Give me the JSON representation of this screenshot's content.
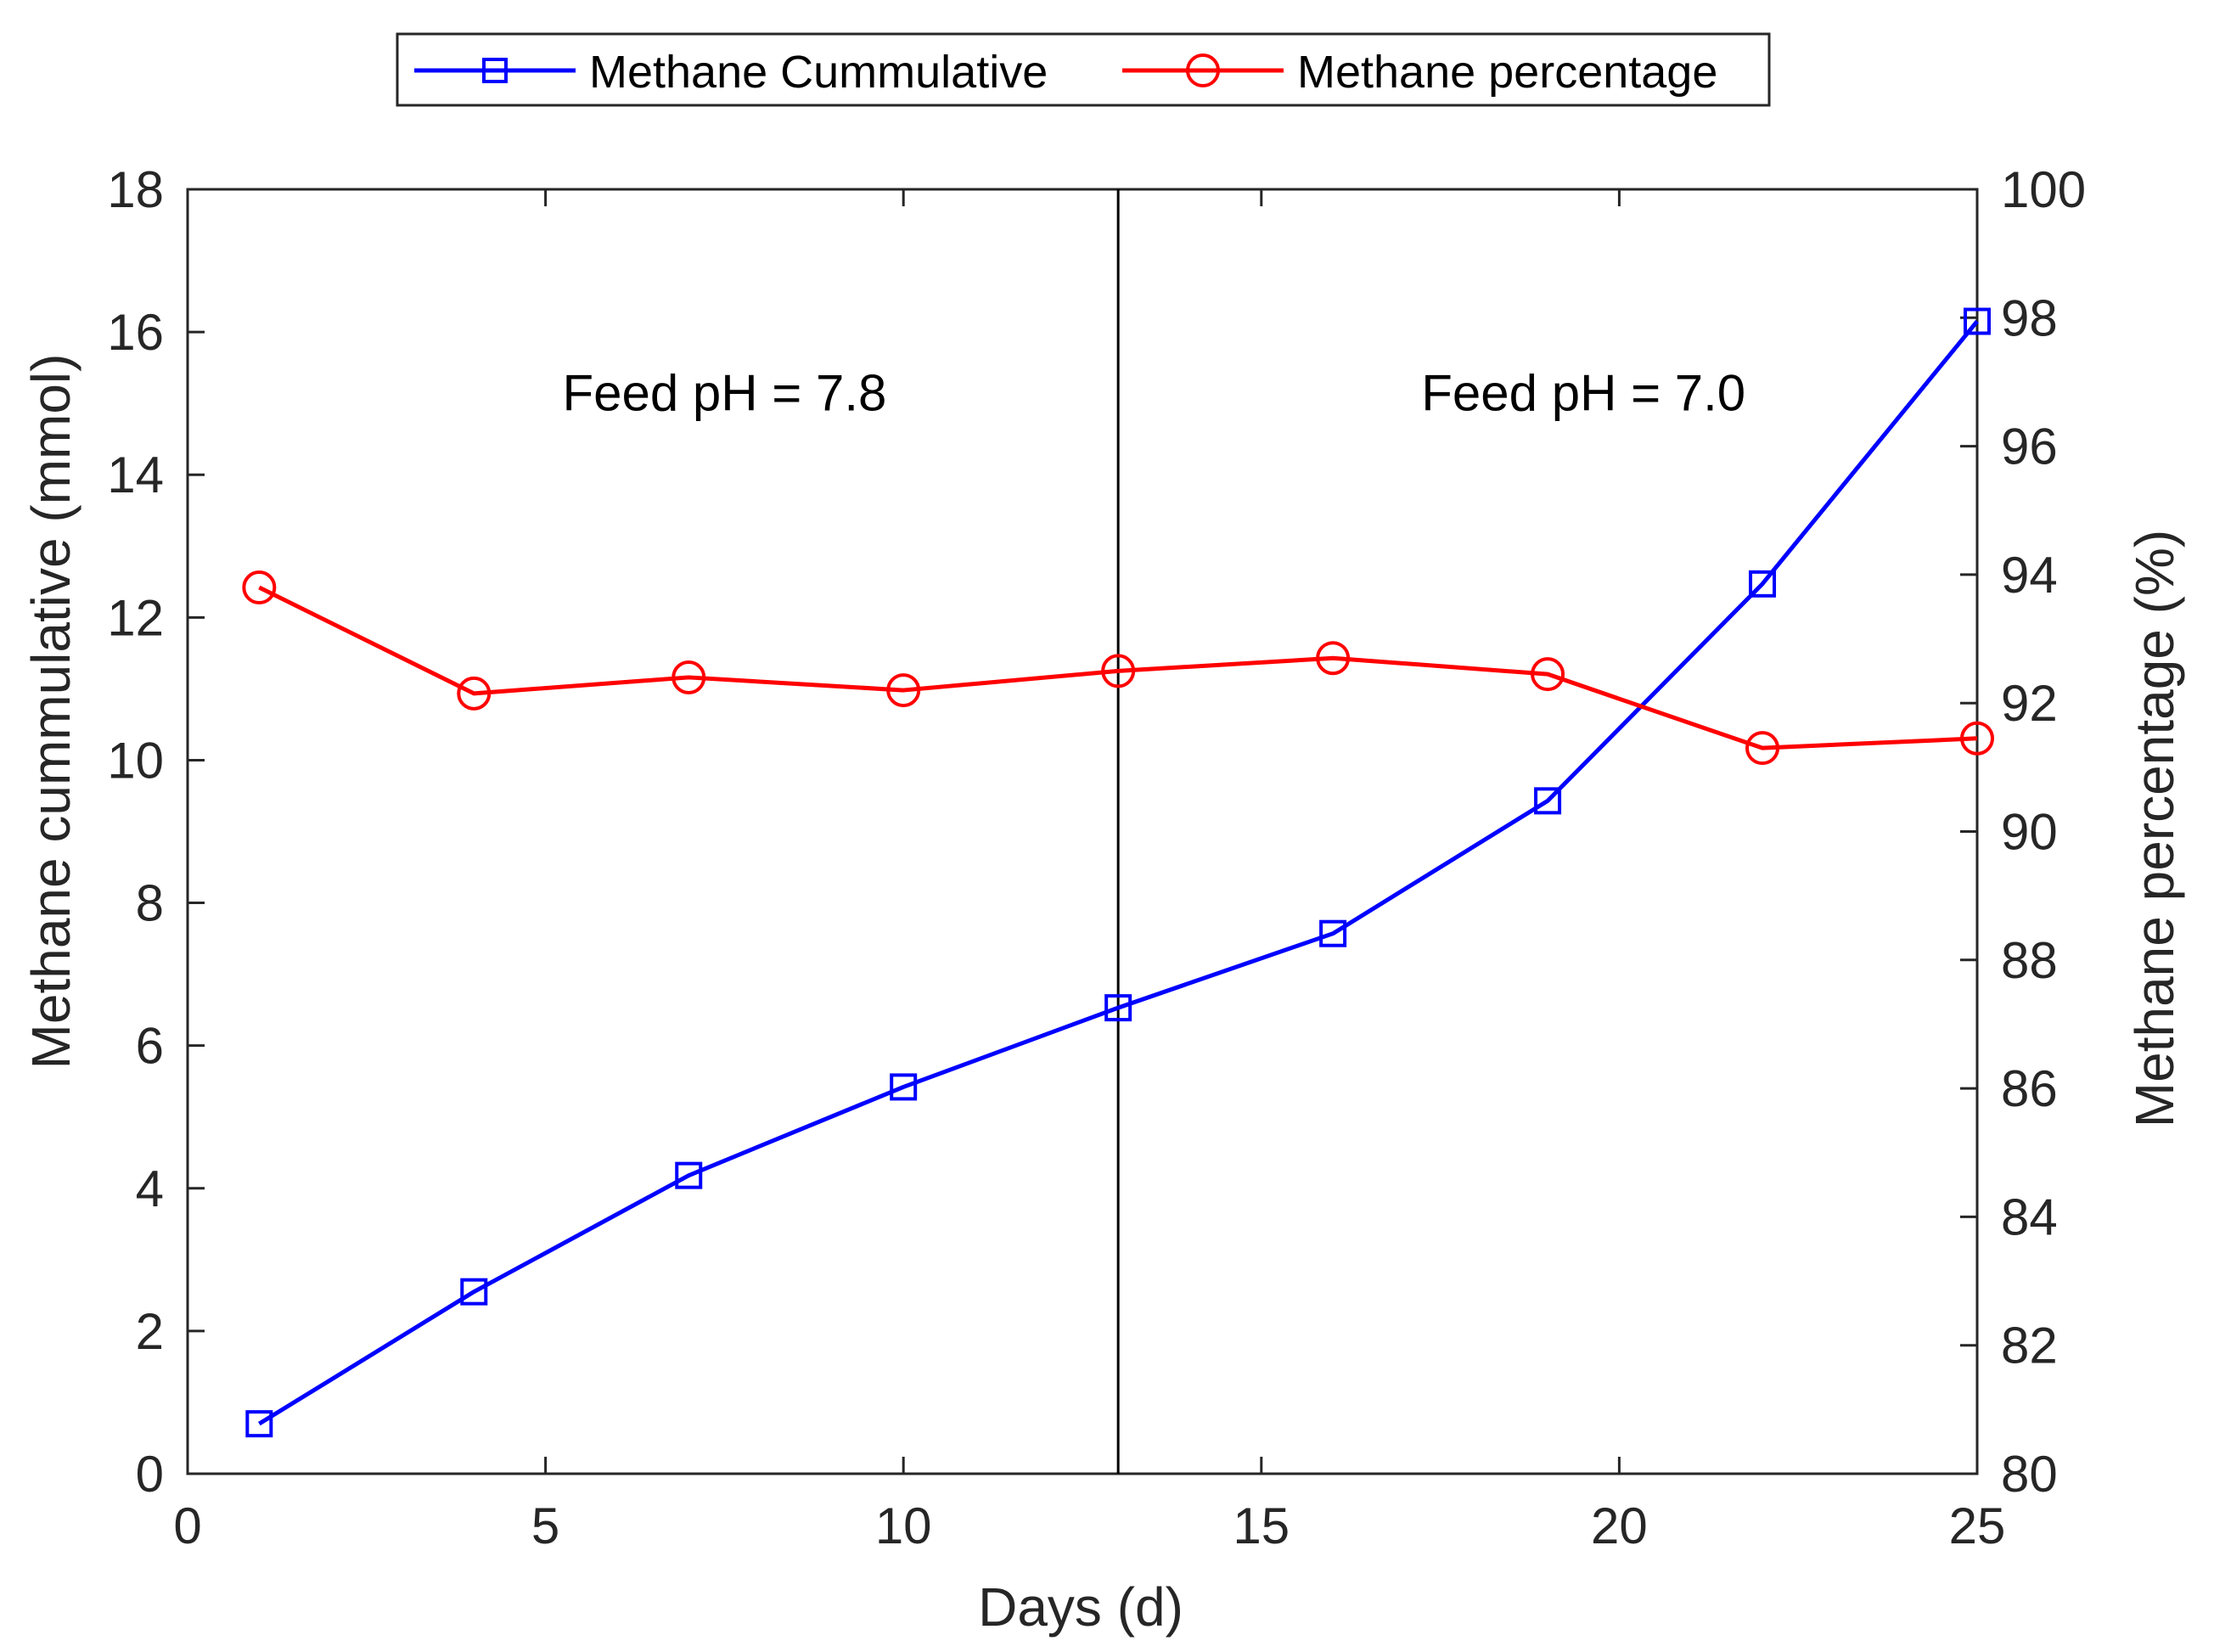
{
  "chart_data": {
    "type": "line",
    "x": [
      1,
      4,
      7,
      10,
      13,
      16,
      19,
      22,
      25
    ],
    "xlabel": "Days (d)",
    "ylabel_left": "Methane cummulative (mmol)",
    "ylabel_right": "Methane percentage (%)",
    "xlim": [
      0,
      25
    ],
    "ylim_left": [
      0,
      18
    ],
    "ylim_right": [
      80,
      100
    ],
    "xticks": [
      "0",
      "5",
      "10",
      "15",
      "20",
      "25"
    ],
    "yticks_left": [
      "0",
      "2",
      "4",
      "6",
      "8",
      "10",
      "12",
      "14",
      "16",
      "18"
    ],
    "yticks_right": [
      "80",
      "82",
      "84",
      "86",
      "88",
      "90",
      "92",
      "94",
      "96",
      "98",
      "100"
    ],
    "grid": false,
    "legend_position": "top-center",
    "series": [
      {
        "name": "Methane Cummulative",
        "axis": "left",
        "color": "#0000ff",
        "marker": "square",
        "values": [
          0.7,
          2.55,
          4.18,
          5.42,
          6.53,
          7.57,
          9.43,
          12.47,
          16.15
        ]
      },
      {
        "name": "Methane percentage",
        "axis": "right",
        "color": "#ff0000",
        "marker": "circle",
        "values": [
          93.8,
          92.15,
          92.4,
          92.2,
          92.5,
          92.7,
          92.45,
          91.3,
          91.45
        ]
      }
    ],
    "divider_x": 13,
    "annotations": [
      {
        "text": "Feed pH = 7.8",
        "x": 7.5,
        "y": 14.9
      },
      {
        "text": "Feed pH = 7.0",
        "x": 19.5,
        "y": 14.9
      }
    ]
  }
}
